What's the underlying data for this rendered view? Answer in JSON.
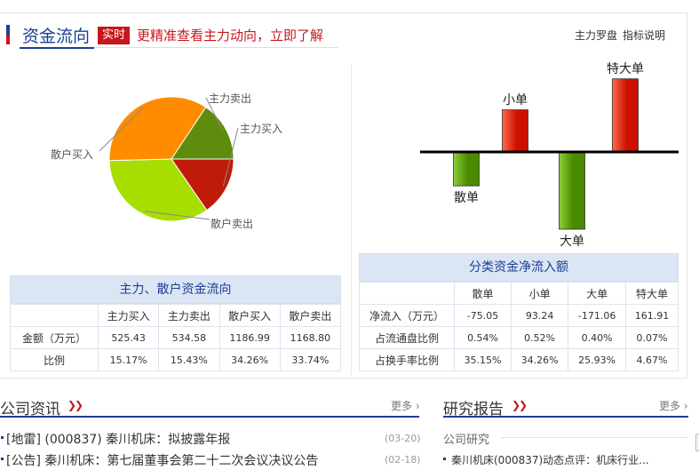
{
  "header": {
    "title": "资金流向",
    "badge": "实时",
    "promo": "更精准查看主力动向，立即了解",
    "link_luopan": "主力罗盘",
    "link_help": "指标说明"
  },
  "pie_chart": {
    "chart_data": {
      "type": "pie",
      "slices": [
        {
          "label": "主力买入",
          "value": 15.17,
          "color": "#c01a0b"
        },
        {
          "label": "散户卖出",
          "value": 33.74,
          "color": "#a8dd00"
        },
        {
          "label": "散户买入",
          "value": 34.26,
          "color": "#ff8c00"
        },
        {
          "label": "主力卖出",
          "value": 15.43,
          "color": "#5e8c0c"
        }
      ]
    }
  },
  "bar_chart": {
    "chart_data": {
      "type": "bar",
      "categories": [
        "散单",
        "小单",
        "大单",
        "特大单"
      ],
      "values": [
        -75.05,
        93.24,
        -171.06,
        161.91
      ],
      "positive_color": "#cc1100",
      "negative_color": "#4a8a00"
    }
  },
  "left_table": {
    "caption": "主力、散户资金流向",
    "headers": [
      "主力买入",
      "主力卖出",
      "散户买入",
      "散户卖出"
    ],
    "rows": [
      {
        "label": "金额（万元）",
        "cells": [
          "525.43",
          "534.58",
          "1186.99",
          "1168.80"
        ]
      },
      {
        "label": "比例",
        "cells": [
          "15.17%",
          "15.43%",
          "34.26%",
          "33.74%"
        ]
      }
    ]
  },
  "right_table": {
    "caption": "分类资金净流入额",
    "headers": [
      "散单",
      "小单",
      "大单",
      "特大单"
    ],
    "rows": [
      {
        "label": "净流入（万元）",
        "cells": [
          "-75.05",
          "93.24",
          "-171.06",
          "161.91"
        ]
      },
      {
        "label": "占流通盘比例",
        "cells": [
          "0.54%",
          "0.52%",
          "0.40%",
          "0.07%"
        ]
      },
      {
        "label": "占换手率比例",
        "cells": [
          "35.15%",
          "34.26%",
          "25.93%",
          "4.67%"
        ]
      }
    ]
  },
  "company_news": {
    "title": "公司资讯",
    "more": "更多",
    "items": [
      {
        "text": "[地雷] (000837) 秦川机床：拟披露年报",
        "date": "(03-20)"
      },
      {
        "text": "[公告] 秦川机床：第七届董事会第二十二次会议决议公告",
        "date": "(02-18)"
      }
    ]
  },
  "research": {
    "title": "研究报告",
    "more": "更多",
    "subtitle": "公司研究",
    "items": [
      {
        "text": "秦川机床(000837)动态点评：机床行业..."
      }
    ]
  }
}
